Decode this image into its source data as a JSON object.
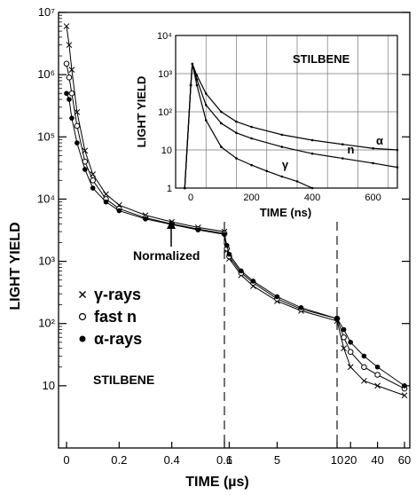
{
  "chart_data": [
    {
      "type": "scatter",
      "xlabel": "TIME  (µs)",
      "ylabel": "LIGHT YIELD",
      "y_scale": "log",
      "ylim": [
        1,
        10000000
      ],
      "y_ticks": [
        {
          "value": 10,
          "label": "10"
        },
        {
          "value": 100,
          "label": "10²"
        },
        {
          "value": 1000,
          "label": "10³"
        },
        {
          "value": 10000,
          "label": "10⁴"
        },
        {
          "value": 100000,
          "label": "10⁵"
        },
        {
          "value": 1000000,
          "label": "10⁶"
        },
        {
          "value": 10000000,
          "label": "10⁷"
        }
      ],
      "x_segments": [
        {
          "range": [
            0,
            0.6
          ],
          "ticks": [
            "0",
            "0.2",
            "0.4",
            "0.6"
          ]
        },
        {
          "range": [
            0.6,
            10
          ],
          "ticks": [
            "1",
            "5",
            "10"
          ]
        },
        {
          "range": [
            10,
            60
          ],
          "ticks": [
            "20",
            "40",
            "60"
          ]
        }
      ],
      "annotation": "Normalized",
      "label_text": "STILBENE",
      "legend": [
        "γ-rays",
        "fast n",
        "α-rays"
      ],
      "series": [
        {
          "name": "γ-rays",
          "marker": "x",
          "x": [
            0,
            0.01,
            0.02,
            0.04,
            0.07,
            0.1,
            0.15,
            0.2,
            0.3,
            0.4,
            0.5,
            0.6,
            0.8,
            1,
            2,
            3,
            5,
            7,
            10,
            15,
            20,
            30,
            40,
            60
          ],
          "y": [
            6000000,
            3000000,
            1200000,
            250000,
            60000,
            25000,
            12000,
            8000,
            5500,
            4300,
            3500,
            3000,
            1500,
            1100,
            600,
            400,
            230,
            160,
            110,
            40,
            20,
            12,
            10,
            7
          ]
        },
        {
          "name": "fast n",
          "marker": "o",
          "x": [
            0,
            0.01,
            0.02,
            0.04,
            0.07,
            0.1,
            0.15,
            0.2,
            0.3,
            0.4,
            0.5,
            0.6,
            0.8,
            1,
            2,
            3,
            5,
            7,
            10,
            15,
            20,
            30,
            40,
            60
          ],
          "y": [
            1500000,
            900000,
            500000,
            150000,
            40000,
            20000,
            10000,
            7000,
            5000,
            4000,
            3300,
            2800,
            1600,
            1200,
            650,
            450,
            250,
            170,
            120,
            60,
            35,
            20,
            15,
            9
          ]
        },
        {
          "name": "α-rays",
          "marker": "dot",
          "x": [
            0,
            0.01,
            0.02,
            0.04,
            0.07,
            0.1,
            0.15,
            0.2,
            0.3,
            0.4,
            0.5,
            0.6,
            0.8,
            1,
            2,
            3,
            5,
            7,
            10,
            15,
            20,
            30,
            40,
            60
          ],
          "y": [
            500000,
            400000,
            200000,
            80000,
            30000,
            15000,
            9000,
            6500,
            4800,
            3900,
            3200,
            2700,
            1800,
            1300,
            700,
            480,
            270,
            180,
            120,
            80,
            50,
            30,
            20,
            10
          ]
        }
      ]
    },
    {
      "type": "line",
      "title": "STILBENE",
      "xlabel": "TIME  (ns)",
      "ylabel": "LIGHT YIELD",
      "y_scale": "log",
      "xlim": [
        -50,
        680
      ],
      "ylim": [
        1,
        10000
      ],
      "x_ticks": [
        0,
        200,
        400,
        600
      ],
      "y_ticks": [
        {
          "value": 1,
          "label": "1"
        },
        {
          "value": 10,
          "label": "10"
        },
        {
          "value": 100,
          "label": "10²"
        },
        {
          "value": 1000,
          "label": "10³"
        },
        {
          "value": 10000,
          "label": "10⁴"
        }
      ],
      "grid": true,
      "series": [
        {
          "name": "α",
          "x": [
            -20,
            0,
            5,
            20,
            50,
            100,
            150,
            200,
            300,
            400,
            500,
            600,
            680
          ],
          "y": [
            1,
            500,
            1800,
            900,
            300,
            100,
            55,
            40,
            25,
            18,
            14,
            11,
            10
          ]
        },
        {
          "name": "n",
          "x": [
            -20,
            0,
            5,
            20,
            50,
            100,
            150,
            200,
            300,
            400,
            500,
            600,
            680
          ],
          "y": [
            1,
            500,
            1800,
            700,
            150,
            50,
            28,
            20,
            12,
            8,
            6,
            4.5,
            3.5
          ]
        },
        {
          "name": "γ",
          "x": [
            -20,
            0,
            5,
            20,
            50,
            100,
            150,
            200,
            250,
            300,
            350,
            400
          ],
          "y": [
            1,
            500,
            1800,
            500,
            60,
            12,
            6,
            4,
            2.8,
            2,
            1.5,
            1
          ]
        }
      ]
    }
  ]
}
